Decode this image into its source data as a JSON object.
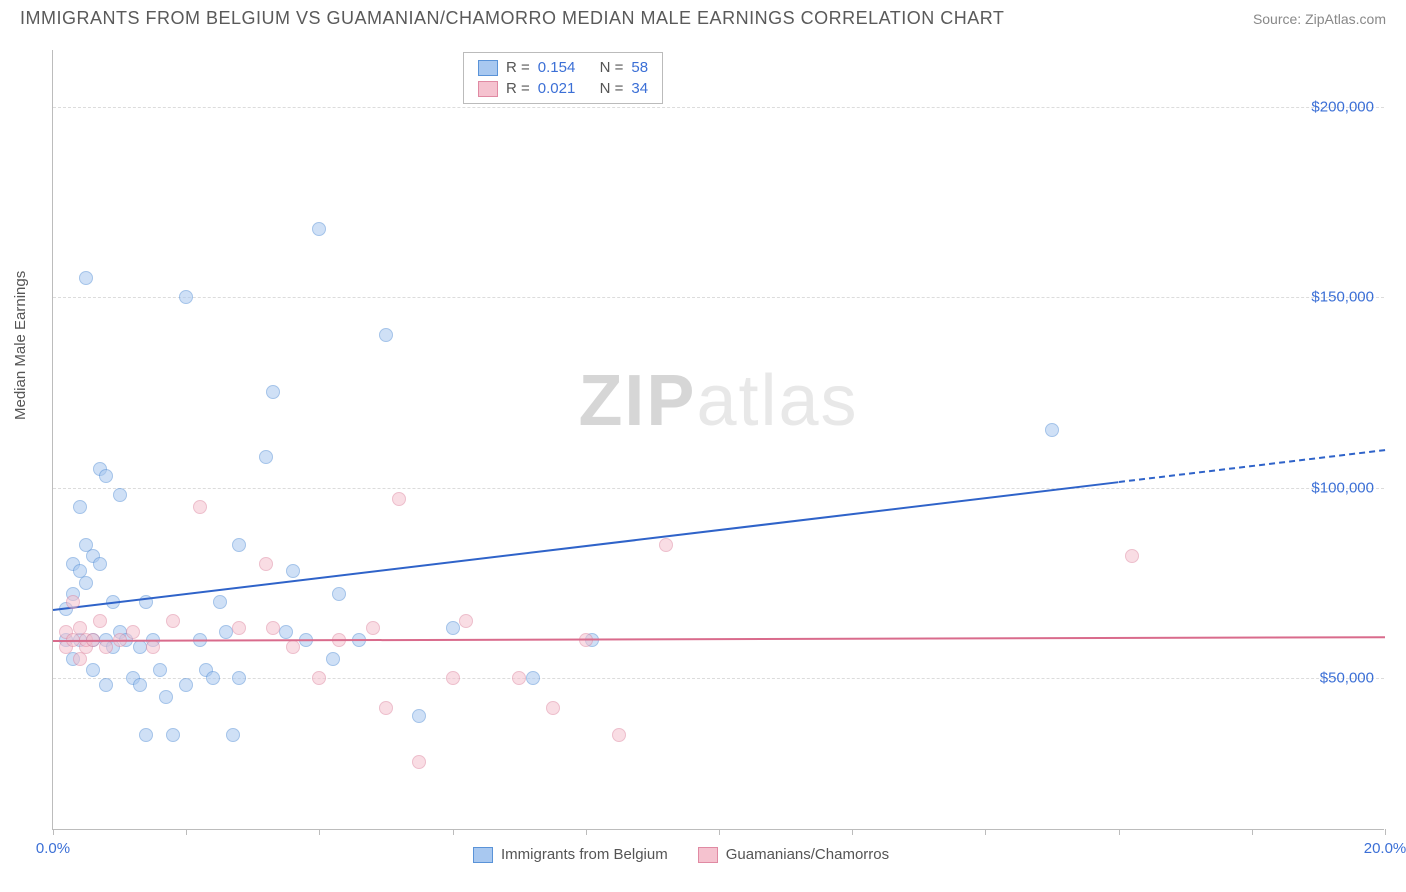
{
  "header": {
    "title": "IMMIGRANTS FROM BELGIUM VS GUAMANIAN/CHAMORRO MEDIAN MALE EARNINGS CORRELATION CHART",
    "source": "Source: ZipAtlas.com"
  },
  "watermark": {
    "left": "ZIP",
    "right": "atlas"
  },
  "chart": {
    "type": "scatter",
    "ylabel": "Median Male Earnings",
    "xlim": [
      0,
      20
    ],
    "ylim": [
      10000,
      215000
    ],
    "x_ticks": [
      0,
      2,
      4,
      6,
      8,
      10,
      12,
      14,
      16,
      18,
      20
    ],
    "x_tick_labels": {
      "0": "0.0%",
      "20": "20.0%"
    },
    "y_gridlines": [
      50000,
      100000,
      150000,
      200000
    ],
    "y_tick_labels": {
      "50000": "$50,000",
      "100000": "$100,000",
      "150000": "$150,000",
      "200000": "$200,000"
    },
    "background_color": "#ffffff",
    "grid_color": "#dcdcdc",
    "axis_color": "#bcbcbc",
    "tick_label_color": "#3b6fd6",
    "marker_radius": 7,
    "marker_opacity": 0.55,
    "series": [
      {
        "name": "Immigrants from Belgium",
        "color_fill": "#a8c8f0",
        "color_stroke": "#5a93d8",
        "R": "0.154",
        "N": "58",
        "trend": {
          "x1": 0,
          "y1": 68000,
          "x2": 20,
          "y2": 110000,
          "solid_until_x": 16,
          "color": "#2f63c9",
          "width": 2
        },
        "points": [
          [
            0.2,
            68000
          ],
          [
            0.2,
            60000
          ],
          [
            0.3,
            72000
          ],
          [
            0.3,
            80000
          ],
          [
            0.3,
            55000
          ],
          [
            0.4,
            78000
          ],
          [
            0.4,
            60000
          ],
          [
            0.4,
            95000
          ],
          [
            0.5,
            75000
          ],
          [
            0.5,
            85000
          ],
          [
            0.5,
            155000
          ],
          [
            0.6,
            82000
          ],
          [
            0.6,
            60000
          ],
          [
            0.6,
            52000
          ],
          [
            0.7,
            80000
          ],
          [
            0.7,
            105000
          ],
          [
            0.8,
            60000
          ],
          [
            0.8,
            48000
          ],
          [
            0.8,
            103000
          ],
          [
            0.9,
            70000
          ],
          [
            0.9,
            58000
          ],
          [
            1.0,
            62000
          ],
          [
            1.0,
            98000
          ],
          [
            1.1,
            60000
          ],
          [
            1.2,
            50000
          ],
          [
            1.3,
            58000
          ],
          [
            1.3,
            48000
          ],
          [
            1.4,
            35000
          ],
          [
            1.4,
            70000
          ],
          [
            1.5,
            60000
          ],
          [
            1.6,
            52000
          ],
          [
            1.7,
            45000
          ],
          [
            1.8,
            35000
          ],
          [
            2.0,
            150000
          ],
          [
            2.0,
            48000
          ],
          [
            2.2,
            60000
          ],
          [
            2.3,
            52000
          ],
          [
            2.4,
            50000
          ],
          [
            2.5,
            70000
          ],
          [
            2.6,
            62000
          ],
          [
            2.7,
            35000
          ],
          [
            2.8,
            85000
          ],
          [
            2.8,
            50000
          ],
          [
            3.2,
            108000
          ],
          [
            3.3,
            125000
          ],
          [
            3.5,
            62000
          ],
          [
            3.6,
            78000
          ],
          [
            3.8,
            60000
          ],
          [
            4.0,
            168000
          ],
          [
            4.2,
            55000
          ],
          [
            4.3,
            72000
          ],
          [
            4.6,
            60000
          ],
          [
            5.0,
            140000
          ],
          [
            5.5,
            40000
          ],
          [
            6.0,
            63000
          ],
          [
            7.2,
            50000
          ],
          [
            8.1,
            60000
          ],
          [
            15.0,
            115000
          ]
        ]
      },
      {
        "name": "Guamanians/Chamorros",
        "color_fill": "#f5c2cf",
        "color_stroke": "#e08aa3",
        "R": "0.021",
        "N": "34",
        "trend": {
          "x1": 0,
          "y1": 60000,
          "x2": 20,
          "y2": 61000,
          "solid_until_x": 20,
          "color": "#d96b8c",
          "width": 2
        },
        "points": [
          [
            0.2,
            62000
          ],
          [
            0.2,
            58000
          ],
          [
            0.3,
            60000
          ],
          [
            0.3,
            70000
          ],
          [
            0.4,
            63000
          ],
          [
            0.4,
            55000
          ],
          [
            0.5,
            58000
          ],
          [
            0.5,
            60000
          ],
          [
            0.6,
            60000
          ],
          [
            0.7,
            65000
          ],
          [
            0.8,
            58000
          ],
          [
            1.0,
            60000
          ],
          [
            1.2,
            62000
          ],
          [
            1.5,
            58000
          ],
          [
            1.8,
            65000
          ],
          [
            2.2,
            95000
          ],
          [
            2.8,
            63000
          ],
          [
            3.2,
            80000
          ],
          [
            3.3,
            63000
          ],
          [
            3.6,
            58000
          ],
          [
            4.0,
            50000
          ],
          [
            4.3,
            60000
          ],
          [
            4.8,
            63000
          ],
          [
            5.0,
            42000
          ],
          [
            5.2,
            97000
          ],
          [
            5.5,
            28000
          ],
          [
            6.0,
            50000
          ],
          [
            6.2,
            65000
          ],
          [
            7.0,
            50000
          ],
          [
            7.5,
            42000
          ],
          [
            8.0,
            60000
          ],
          [
            8.5,
            35000
          ],
          [
            9.2,
            85000
          ],
          [
            16.2,
            82000
          ]
        ]
      }
    ],
    "legend_top": {
      "rows": [
        {
          "swatch_fill": "#a8c8f0",
          "swatch_stroke": "#5a93d8",
          "r_label": "R =",
          "r_val": "0.154",
          "n_label": "N =",
          "n_val": "58"
        },
        {
          "swatch_fill": "#f5c2cf",
          "swatch_stroke": "#e08aa3",
          "r_label": "R =",
          "r_val": "0.021",
          "n_label": "N =",
          "n_val": "34"
        }
      ]
    },
    "legend_bottom": [
      {
        "swatch_fill": "#a8c8f0",
        "swatch_stroke": "#5a93d8",
        "label": "Immigrants from Belgium"
      },
      {
        "swatch_fill": "#f5c2cf",
        "swatch_stroke": "#e08aa3",
        "label": "Guamanians/Chamorros"
      }
    ]
  }
}
